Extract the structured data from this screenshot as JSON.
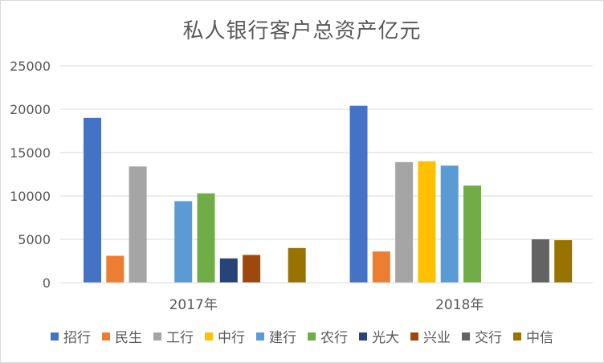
{
  "chart_data": {
    "type": "bar",
    "title": "私人银行客户总资产亿元",
    "categories": [
      "2017年",
      "2018年"
    ],
    "ylim": [
      0,
      25000
    ],
    "yticks": [
      0,
      5000,
      10000,
      15000,
      20000,
      25000
    ],
    "grid": true,
    "legend_position": "bottom",
    "series": [
      {
        "name": "招行",
        "color": "#4472c4",
        "values": [
          19000,
          20400
        ]
      },
      {
        "name": "民生",
        "color": "#ed7d31",
        "values": [
          3100,
          3600
        ]
      },
      {
        "name": "工行",
        "color": "#a5a5a5",
        "values": [
          13400,
          13900
        ]
      },
      {
        "name": "中行",
        "color": "#ffc000",
        "values": [
          null,
          14000
        ]
      },
      {
        "name": "建行",
        "color": "#5b9bd5",
        "values": [
          9400,
          13500
        ]
      },
      {
        "name": "农行",
        "color": "#70ad47",
        "values": [
          10300,
          11200
        ]
      },
      {
        "name": "光大",
        "color": "#264478",
        "values": [
          2800,
          null
        ]
      },
      {
        "name": "兴业",
        "color": "#9e480e",
        "values": [
          3200,
          null
        ]
      },
      {
        "name": "交行",
        "color": "#636363",
        "values": [
          null,
          5000
        ]
      },
      {
        "name": "中信",
        "color": "#997300",
        "values": [
          4000,
          4900
        ]
      }
    ]
  }
}
